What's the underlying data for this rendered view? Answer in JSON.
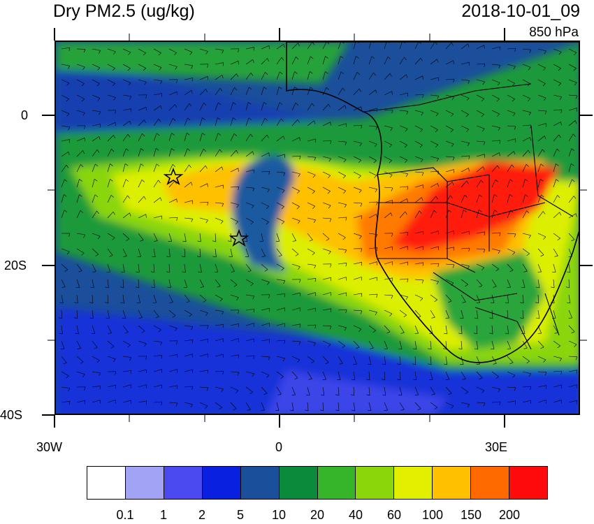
{
  "header": {
    "title": "Dry PM2.5 (ug/kg)",
    "datetime": "2018-10-01_09",
    "level": "850 hPa"
  },
  "axes": {
    "lat_labels": [
      "0",
      "20S",
      "40S"
    ],
    "lon_labels": [
      "30W",
      "0",
      "30E"
    ]
  },
  "colorbar": {
    "colors": [
      "#ffffff",
      "#a3a3f5",
      "#4a4af0",
      "#0a20e0",
      "#1a4f9c",
      "#0a8a3a",
      "#36b52a",
      "#8ad60a",
      "#e2f000",
      "#ffc000",
      "#ff6a00",
      "#ff0a0a"
    ],
    "labels": [
      "0.1",
      "1",
      "2",
      "5",
      "10",
      "20",
      "40",
      "60",
      "100",
      "150",
      "200"
    ]
  }
}
